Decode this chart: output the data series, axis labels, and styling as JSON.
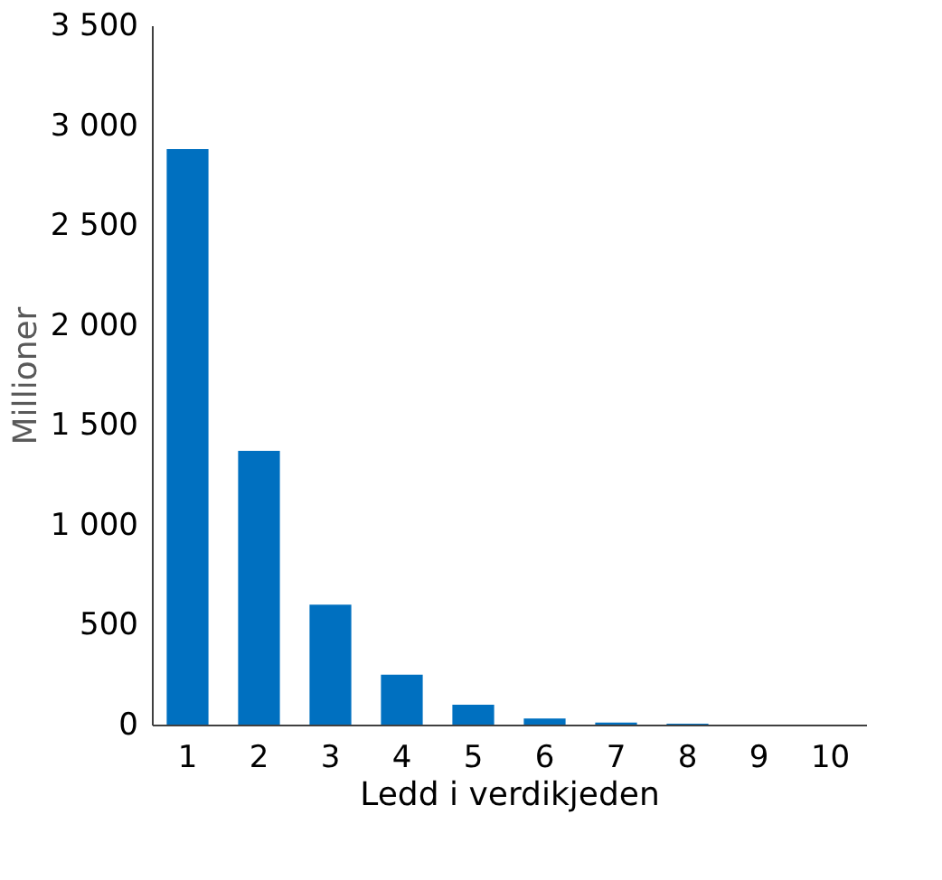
{
  "chart_data": {
    "type": "bar",
    "xlabel": "Ledd i verdikjeden",
    "ylabel": "Millioner",
    "categories": [
      "1",
      "2",
      "3",
      "4",
      "5",
      "6",
      "7",
      "8",
      "9",
      "10"
    ],
    "values": [
      2880,
      1370,
      600,
      250,
      100,
      30,
      10,
      5,
      0,
      0
    ],
    "color": "#0070c0",
    "ylim": [
      0,
      3500
    ],
    "yticks": [
      0,
      500,
      {
        "value": 1000,
        "label": "1 000"
      },
      {
        "value": 1500,
        "label": "1 500"
      },
      {
        "value": 2000,
        "label": "2 000"
      },
      {
        "value": 2500,
        "label": "2 500"
      },
      {
        "value": 3000,
        "label": "3 000"
      },
      {
        "value": 3500,
        "label": "3 500"
      }
    ],
    "grid": false
  }
}
